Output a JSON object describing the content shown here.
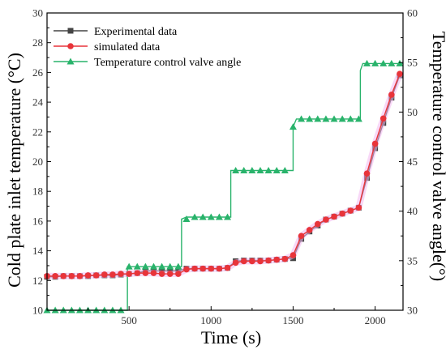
{
  "chart_data": {
    "type": "line",
    "xlabel": "Time (s)",
    "ylabel_left": "Cold plate inlet temperature (°C)",
    "ylabel_right": "Temperature control valve angle(°)",
    "xlim": [
      0,
      2170
    ],
    "ylim_left": [
      10,
      30
    ],
    "ylim_right": [
      30,
      60
    ],
    "x_ticks": [
      500,
      1000,
      1500,
      2000
    ],
    "y_left_ticks": [
      10,
      12,
      14,
      16,
      18,
      20,
      22,
      24,
      26,
      28,
      30
    ],
    "y_right_ticks": [
      30,
      35,
      40,
      45,
      50,
      55,
      60
    ],
    "x_tick_labels": [
      "500",
      "1000",
      "1500",
      "2000"
    ],
    "y_left_tick_labels": [
      "10",
      "12",
      "14",
      "16",
      "18",
      "20",
      "22",
      "24",
      "26",
      "28",
      "30"
    ],
    "y_right_tick_labels": [
      "30",
      "35",
      "40",
      "45",
      "50",
      "55",
      "60"
    ],
    "grid": false,
    "legend_position": "top-left",
    "legend": [
      {
        "label": "Experimental data",
        "color": "#444444",
        "marker": "square"
      },
      {
        "label": "simulated data",
        "color": "#e8343a",
        "marker": "circle"
      },
      {
        "label": "Temperature control valve angle",
        "color": "#29b36b",
        "marker": "triangle"
      }
    ],
    "series": [
      {
        "name": "Experimental data",
        "axis": "left",
        "color": "#444444",
        "marker": "square",
        "x": [
          0,
          50,
          100,
          150,
          200,
          250,
          300,
          350,
          400,
          450,
          500,
          550,
          600,
          650,
          700,
          750,
          800,
          850,
          900,
          950,
          1000,
          1050,
          1100,
          1150,
          1200,
          1250,
          1300,
          1350,
          1400,
          1450,
          1500,
          1550,
          1600,
          1650,
          1700,
          1750,
          1800,
          1850,
          1900,
          1950,
          2000,
          2050,
          2100,
          2150
        ],
        "y": [
          12.25,
          12.25,
          12.3,
          12.3,
          12.3,
          12.3,
          12.35,
          12.35,
          12.35,
          12.4,
          12.45,
          12.5,
          12.65,
          12.65,
          12.65,
          12.65,
          12.65,
          12.8,
          12.8,
          12.8,
          12.8,
          12.8,
          12.85,
          13.3,
          13.35,
          13.35,
          13.35,
          13.35,
          13.4,
          13.45,
          13.5,
          14.8,
          15.3,
          15.7,
          16.1,
          16.3,
          16.5,
          16.7,
          16.9,
          18.9,
          20.9,
          22.6,
          24.3,
          25.8
        ]
      },
      {
        "name": "simulated data",
        "axis": "left",
        "color": "#e8343a",
        "marker": "circle",
        "x": [
          0,
          50,
          100,
          150,
          200,
          250,
          300,
          350,
          400,
          450,
          500,
          550,
          600,
          650,
          700,
          750,
          800,
          850,
          900,
          950,
          1000,
          1050,
          1100,
          1150,
          1200,
          1250,
          1300,
          1350,
          1400,
          1450,
          1500,
          1550,
          1600,
          1650,
          1700,
          1750,
          1800,
          1850,
          1900,
          1950,
          2000,
          2050,
          2100,
          2150
        ],
        "y": [
          12.3,
          12.3,
          12.3,
          12.3,
          12.3,
          12.35,
          12.35,
          12.4,
          12.4,
          12.45,
          12.45,
          12.5,
          12.5,
          12.5,
          12.45,
          12.45,
          12.45,
          12.75,
          12.8,
          12.8,
          12.8,
          12.8,
          12.85,
          13.2,
          13.3,
          13.3,
          13.3,
          13.35,
          13.4,
          13.45,
          13.7,
          15.0,
          15.4,
          15.8,
          16.1,
          16.3,
          16.5,
          16.7,
          16.9,
          19.2,
          21.2,
          22.9,
          24.5,
          25.9
        ]
      },
      {
        "name": "Temperature control valve angle",
        "axis": "right",
        "color": "#29b36b",
        "marker": "triangle",
        "x": [
          0,
          50,
          100,
          150,
          200,
          250,
          300,
          350,
          400,
          450,
          500,
          550,
          600,
          650,
          700,
          750,
          800,
          850,
          900,
          950,
          1000,
          1050,
          1100,
          1150,
          1200,
          1250,
          1300,
          1350,
          1400,
          1450,
          1500,
          1550,
          1600,
          1650,
          1700,
          1750,
          1800,
          1850,
          1900,
          1950,
          2000,
          2050,
          2100,
          2150
        ],
        "y": [
          30.0,
          30.0,
          30.0,
          30.0,
          30.0,
          30.0,
          30.0,
          30.0,
          30.0,
          30.0,
          34.4,
          34.4,
          34.4,
          34.4,
          34.4,
          34.4,
          34.4,
          39.2,
          39.4,
          39.4,
          39.4,
          39.4,
          39.4,
          44.1,
          44.1,
          44.1,
          44.1,
          44.1,
          44.1,
          44.1,
          48.5,
          49.3,
          49.3,
          49.3,
          49.3,
          49.3,
          49.3,
          49.3,
          49.3,
          54.9,
          54.9,
          54.9,
          54.9,
          54.9
        ]
      }
    ],
    "step_line_right": [
      [
        0,
        30.0
      ],
      [
        490,
        30.0
      ],
      [
        490,
        34.4
      ],
      [
        820,
        34.4
      ],
      [
        820,
        39.2
      ],
      [
        850,
        39.4
      ],
      [
        1120,
        39.4
      ],
      [
        1120,
        44.1
      ],
      [
        1500,
        44.1
      ],
      [
        1500,
        48.5
      ],
      [
        1520,
        49.3
      ],
      [
        1910,
        49.3
      ],
      [
        1910,
        54.2
      ],
      [
        1925,
        54.9
      ],
      [
        2170,
        54.9
      ]
    ]
  }
}
